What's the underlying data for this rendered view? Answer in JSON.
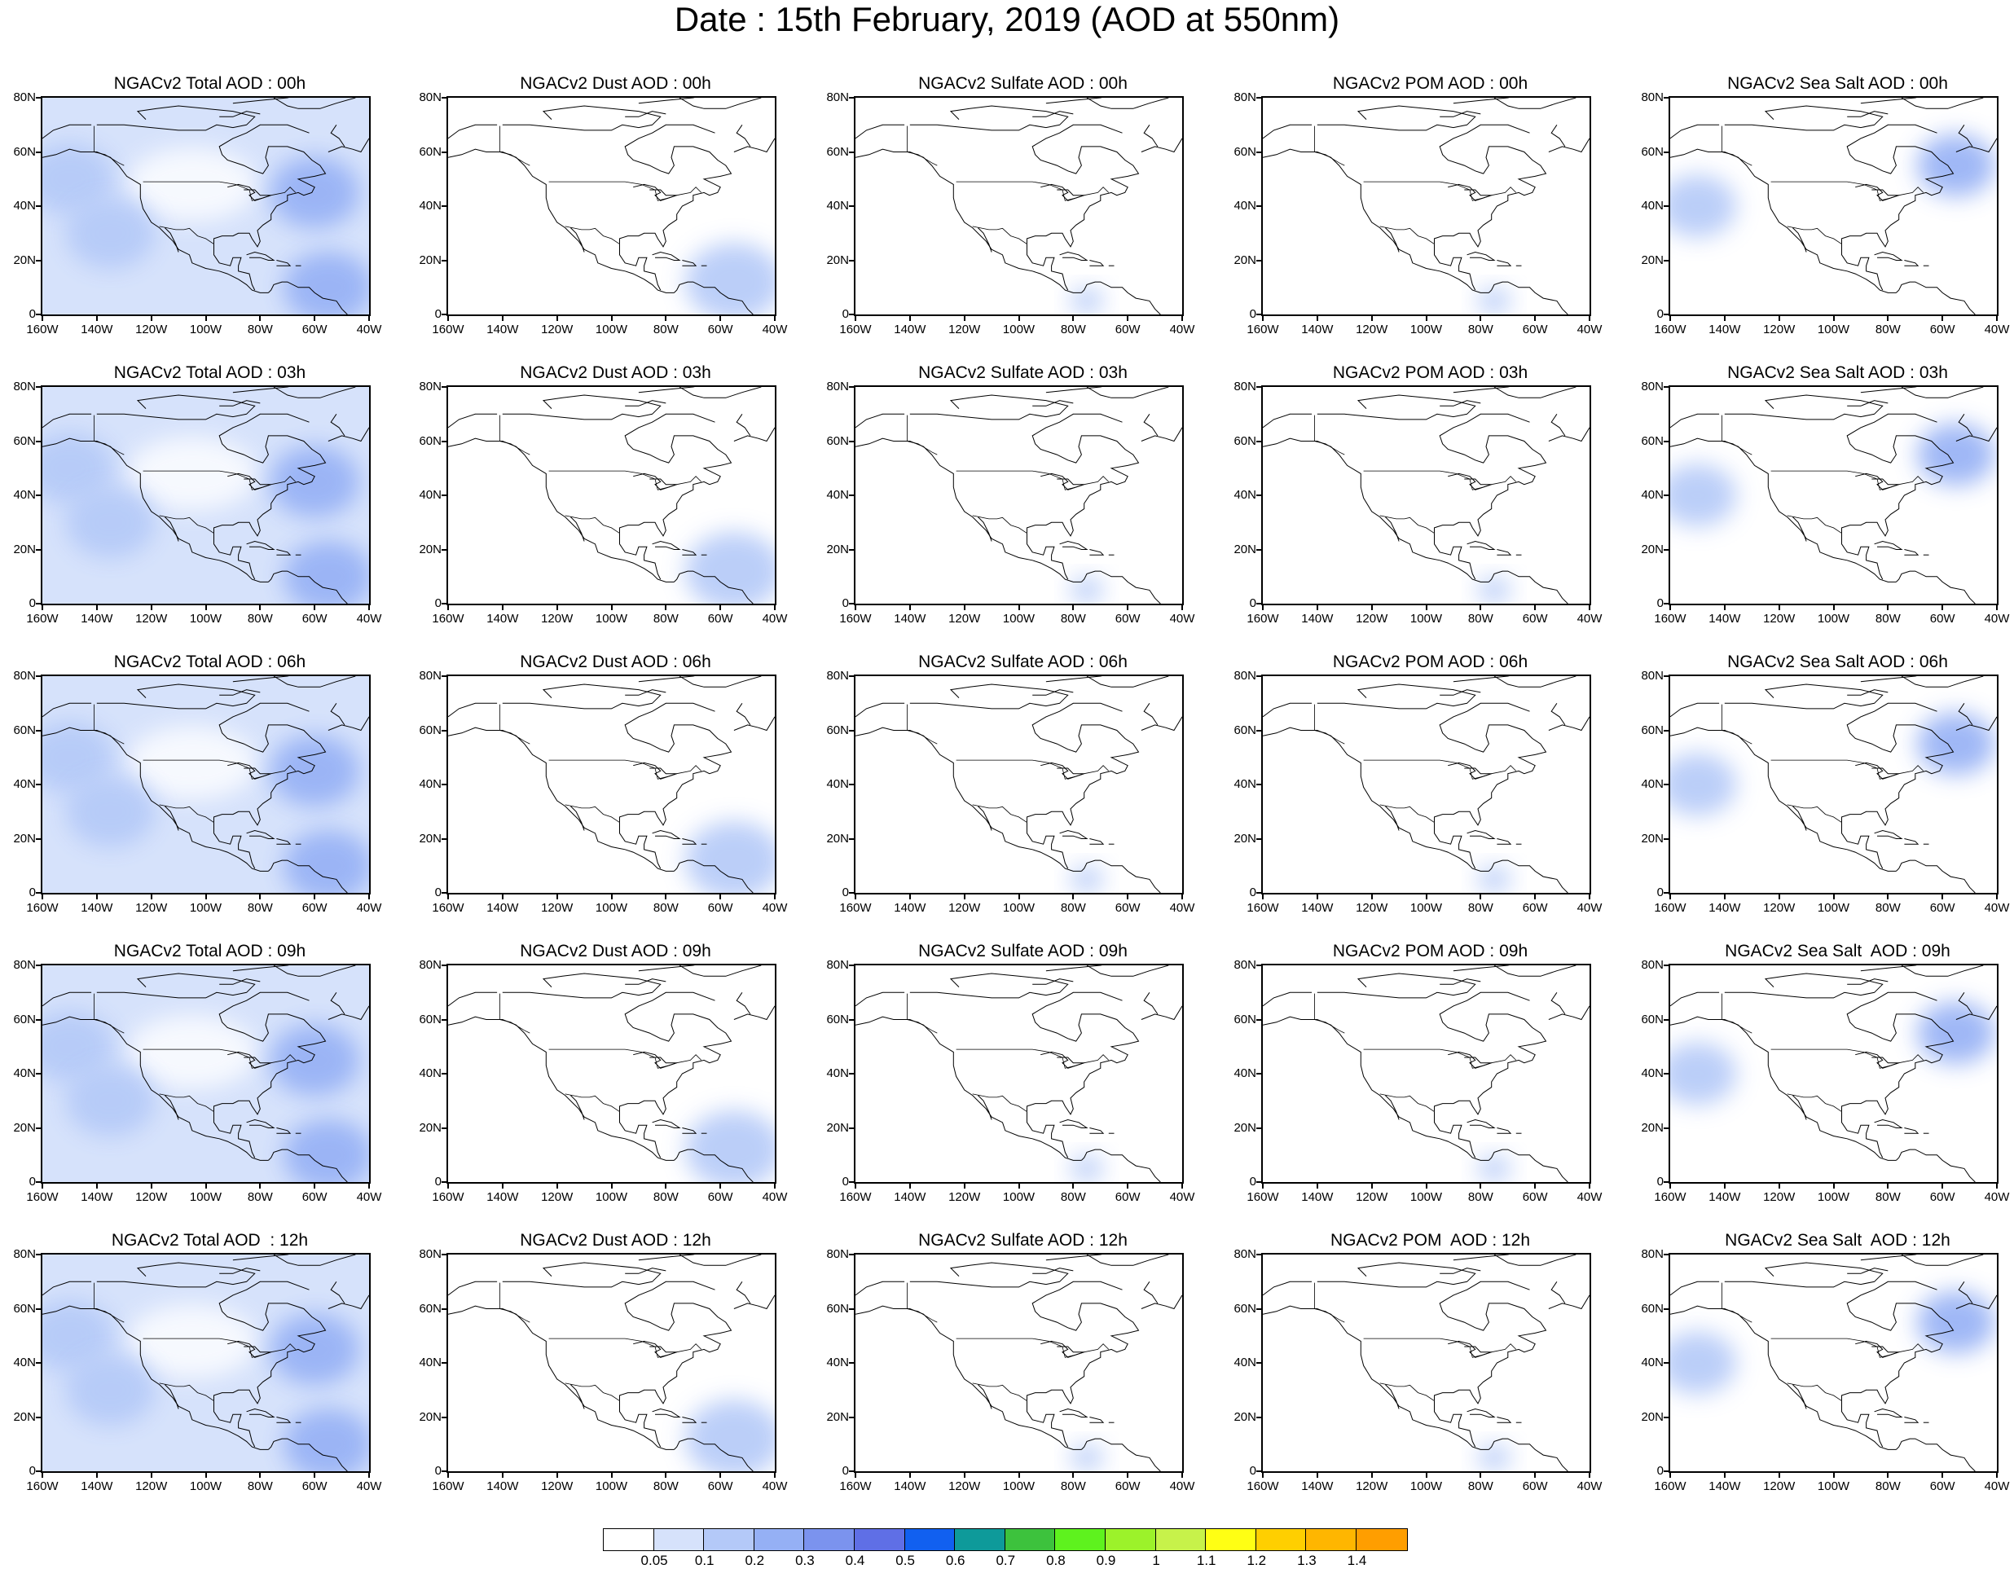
{
  "title": "Date : 15th February, 2019 (AOD at 550nm)",
  "lat_ticks": [
    "80N",
    "60N",
    "40N",
    "20N",
    "0"
  ],
  "lon_ticks": [
    "160W",
    "140W",
    "120W",
    "100W",
    "80W",
    "60W",
    "40W"
  ],
  "map_extent": {
    "lon_min": -160,
    "lon_max": -40,
    "lat_min": 0,
    "lat_max": 80
  },
  "panels": [
    [
      "NGACv2 Total AOD : 00h",
      "NGACv2 Dust AOD : 00h",
      "NGACv2 Sulfate AOD : 00h",
      "NGACv2 POM AOD : 00h",
      "NGACv2 Sea Salt AOD : 00h"
    ],
    [
      "NGACv2 Total AOD : 03h",
      "NGACv2 Dust AOD : 03h",
      "NGACv2 Sulfate AOD : 03h",
      "NGACv2 POM AOD : 03h",
      "NGACv2 Sea Salt AOD : 03h"
    ],
    [
      "NGACv2 Total AOD : 06h",
      "NGACv2 Dust AOD : 06h",
      "NGACv2 Sulfate AOD : 06h",
      "NGACv2 POM AOD : 06h",
      "NGACv2 Sea Salt AOD : 06h"
    ],
    [
      "NGACv2 Total AOD : 09h",
      "NGACv2 Dust AOD : 09h",
      "NGACv2 Sulfate AOD : 09h",
      "NGACv2 POM AOD : 09h",
      "NGACv2 Sea Salt  AOD : 09h"
    ],
    [
      "NGACv2 Total AOD  : 12h",
      "NGACv2 Dust AOD : 12h",
      "NGACv2 Sulfate AOD : 12h",
      "NGACv2 POM  AOD : 12h",
      "NGACv2 Sea Salt  AOD : 12h"
    ]
  ],
  "colorbar": {
    "labels": [
      "0.05",
      "0.1",
      "0.2",
      "0.3",
      "0.4",
      "0.5",
      "0.6",
      "0.7",
      "0.8",
      "0.9",
      "1",
      "1.1",
      "1.2",
      "1.3",
      "1.4"
    ],
    "colors": [
      "#ffffff",
      "#d6e2fb",
      "#b4c9f8",
      "#95b0f5",
      "#7b93ee",
      "#5f6fe6",
      "#1160f0",
      "#0e9a9a",
      "#3dc23d",
      "#5ef21e",
      "#9cf22a",
      "#c7f24a",
      "#ffff14",
      "#ffcf00",
      "#ffb600",
      "#ff9e00",
      "#ff7400",
      "#ff2c16"
    ]
  },
  "aod_fields": {
    "total": [
      {
        "lon": -150,
        "lat": 50,
        "value": 0.1
      },
      {
        "lon": -135,
        "lat": 30,
        "value": 0.1
      },
      {
        "lon": -60,
        "lat": 45,
        "value": 0.2
      },
      {
        "lon": -55,
        "lat": 10,
        "value": 0.2
      }
    ],
    "dust": [
      {
        "lon": -55,
        "lat": 12,
        "value": 0.1
      }
    ],
    "sulfate": [
      {
        "lon": -75,
        "lat": 5,
        "value": 0.05
      }
    ],
    "pom": [
      {
        "lon": -75,
        "lat": 5,
        "value": 0.05
      }
    ],
    "seasalt": [
      {
        "lon": -55,
        "lat": 55,
        "value": 0.2
      },
      {
        "lon": -150,
        "lat": 40,
        "value": 0.1
      }
    ]
  }
}
